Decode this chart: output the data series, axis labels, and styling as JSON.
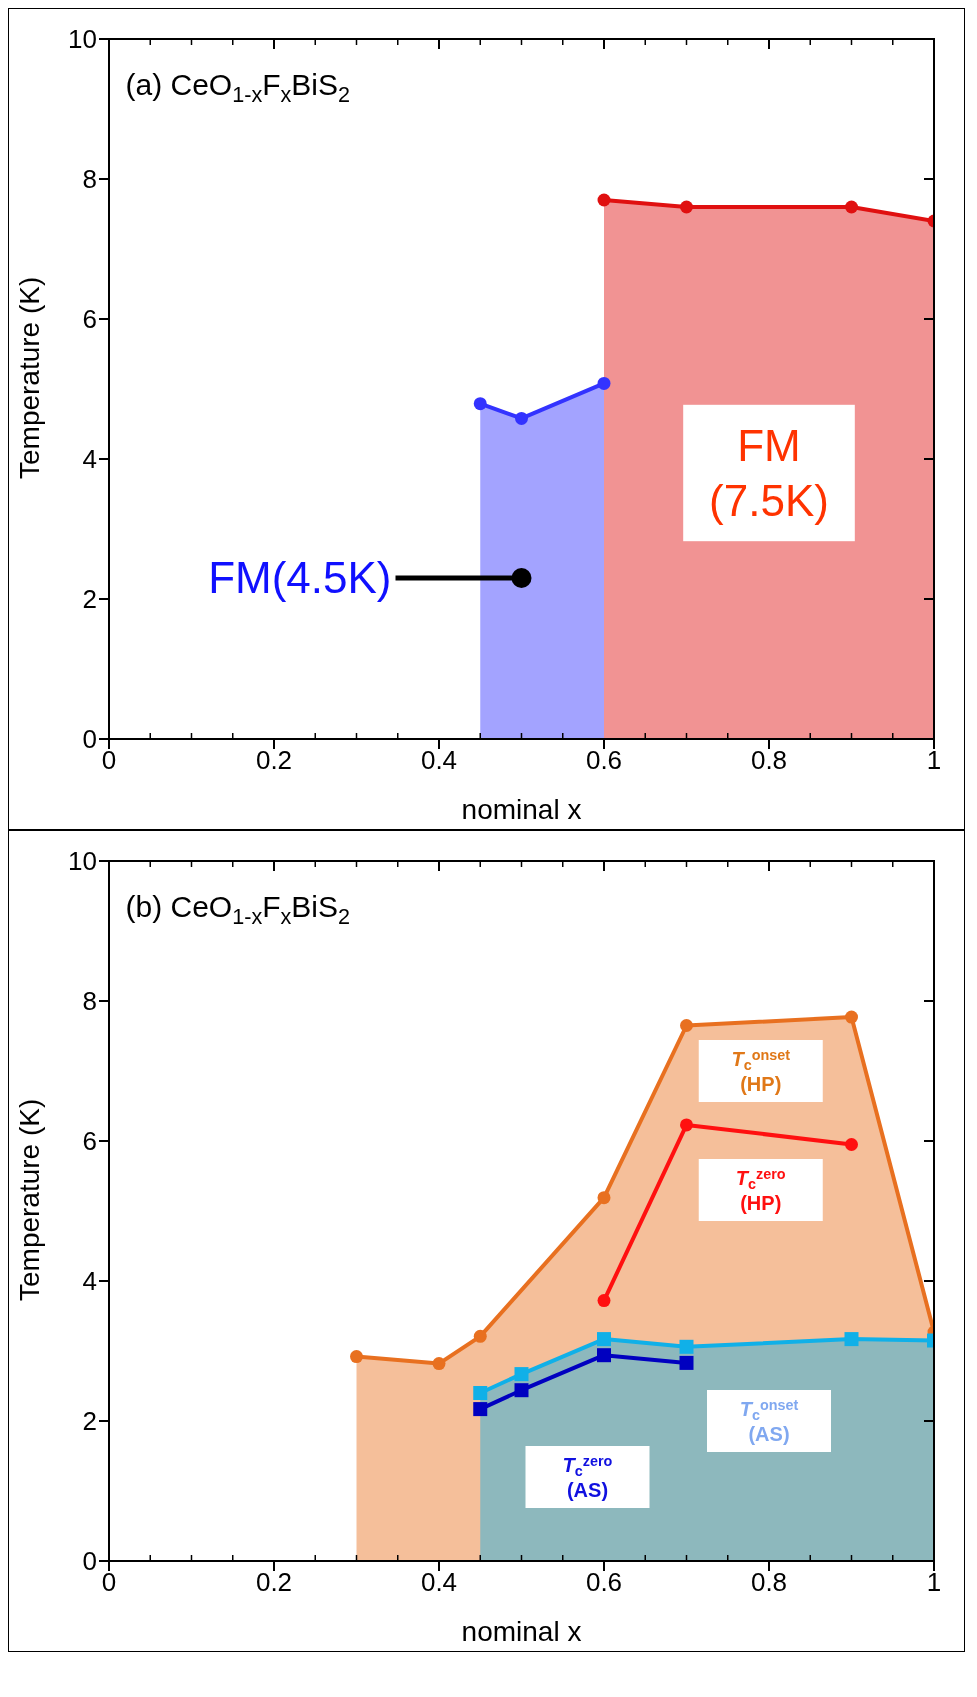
{
  "chart_data": [
    {
      "type": "area",
      "xlabel": "nominal x",
      "ylabel": "Temperature (K)",
      "xlim": [
        0,
        1
      ],
      "xticks": [
        0,
        0.2,
        0.4,
        0.6,
        0.8,
        1
      ],
      "ylim": [
        0,
        10
      ],
      "yticks": [
        0,
        2,
        4,
        6,
        8,
        10
      ],
      "grid": false,
      "legend": false,
      "annotations": [
        "(a) CeO$_{1-x}$F$_{x}$BiS$_{2}$",
        {
          "text": "FM(4.5K)",
          "x": 0.5,
          "y": 2.3
        },
        "FM\n(7.5K)"
      ],
      "series": [
        {
          "color": "#3333ff",
          "marker": "circle",
          "x": [
            0.45,
            0.5,
            0.6
          ],
          "values": [
            4.79,
            4.58,
            5.08
          ]
        },
        {
          "color": "#e01010",
          "marker": "circle",
          "x": [
            0.6,
            0.7,
            0.9,
            1.0
          ],
          "values": [
            7.7,
            7.6,
            7.6,
            7.4
          ]
        }
      ]
    },
    {
      "type": "line",
      "xlabel": "nominal x",
      "ylabel": "Temperature (K)",
      "xlim": [
        0,
        1
      ],
      "xticks": [
        0,
        0.2,
        0.4,
        0.6,
        0.8,
        1
      ],
      "ylim": [
        0,
        10
      ],
      "yticks": [
        0,
        2,
        4,
        6,
        8,
        10
      ],
      "grid": false,
      "legend": false,
      "annotations": [
        "(b) CeO$_{1-x}$F$_{x}$BiS$_{2}$",
        "T$_{c}$$^{onset}$\n(HP)",
        "T$_{c}$$^{zero}$\n(HP)",
        "T$_{c}$$^{zero}$\n(AS)",
        "T$_{c}$$^{onset}$\n(AS)"
      ],
      "series": [
        {
          "type": "area",
          "color": "#e87020",
          "marker": "circle",
          "x": [
            0.3,
            0.4,
            0.45,
            0.6,
            0.7,
            0.9,
            1.0
          ],
          "values": [
            2.92,
            2.82,
            3.21,
            5.19,
            7.65,
            7.77,
            3.27
          ]
        },
        {
          "type": "area",
          "color": "#10b0e8",
          "marker": "square",
          "x": [
            0.45,
            0.5,
            0.6,
            0.7,
            0.9,
            1.0
          ],
          "values": [
            2.4,
            2.67,
            3.17,
            3.06,
            3.17,
            3.15
          ]
        },
        {
          "color": "#ff1010",
          "marker": "circle",
          "x": [
            0.6,
            0.7,
            0.9
          ],
          "values": [
            3.72,
            6.23,
            5.95
          ]
        },
        {
          "color": "#0000c0",
          "marker": "square",
          "x": [
            0.45,
            0.5,
            0.6,
            0.7
          ],
          "values": [
            2.17,
            2.44,
            2.94,
            2.83
          ]
        }
      ]
    }
  ]
}
